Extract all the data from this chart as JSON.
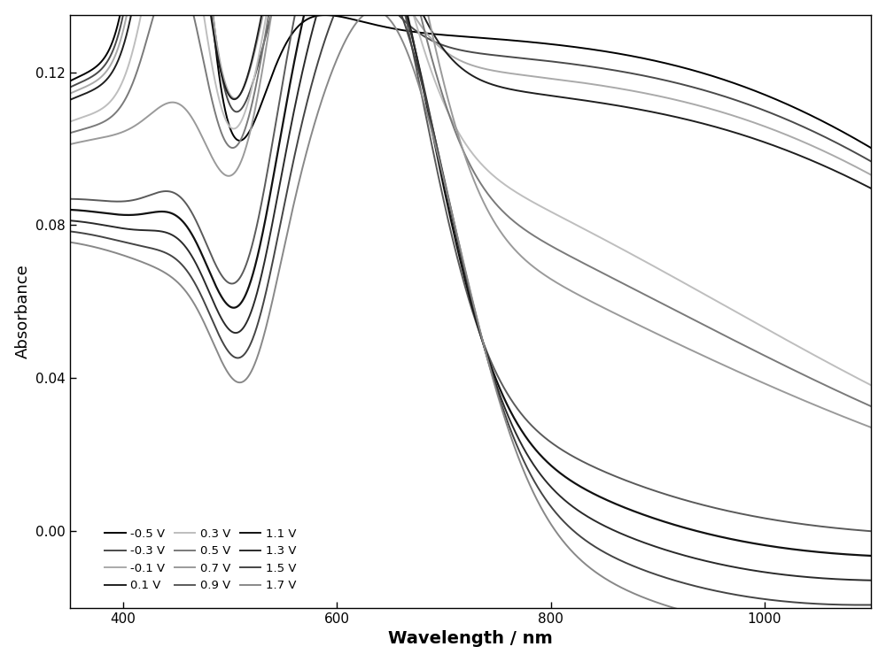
{
  "title": "",
  "xlabel": "Wavelength / nm",
  "ylabel": "Absorbance",
  "xlim": [
    350,
    1100
  ],
  "ylim": [
    -0.02,
    0.135
  ],
  "yticks": [
    0.0,
    0.04,
    0.08,
    0.12
  ],
  "xticks": [
    400,
    600,
    800,
    1000
  ],
  "background_color": "#ffffff",
  "legend_labels": [
    "-0.5 V",
    "-0.3 V",
    "-0.1 V",
    "0.1 V",
    "0.3 V",
    "0.5 V",
    "0.7 V",
    "0.9 V",
    "1.1 V",
    "1.3 V",
    "1.5 V",
    "1.7 V"
  ],
  "colors": [
    "#000000",
    "#4a4a4a",
    "#aaaaaa",
    "#1f1f1f",
    "#bebebe",
    "#7a7a7a",
    "#9a9a9a",
    "#5a5a5a",
    "#111111",
    "#2a2a2a",
    "#444444",
    "#888888"
  ],
  "linewidths": [
    1.4,
    1.4,
    1.4,
    1.4,
    1.4,
    1.4,
    1.4,
    1.4,
    1.6,
    1.4,
    1.4,
    1.4
  ]
}
